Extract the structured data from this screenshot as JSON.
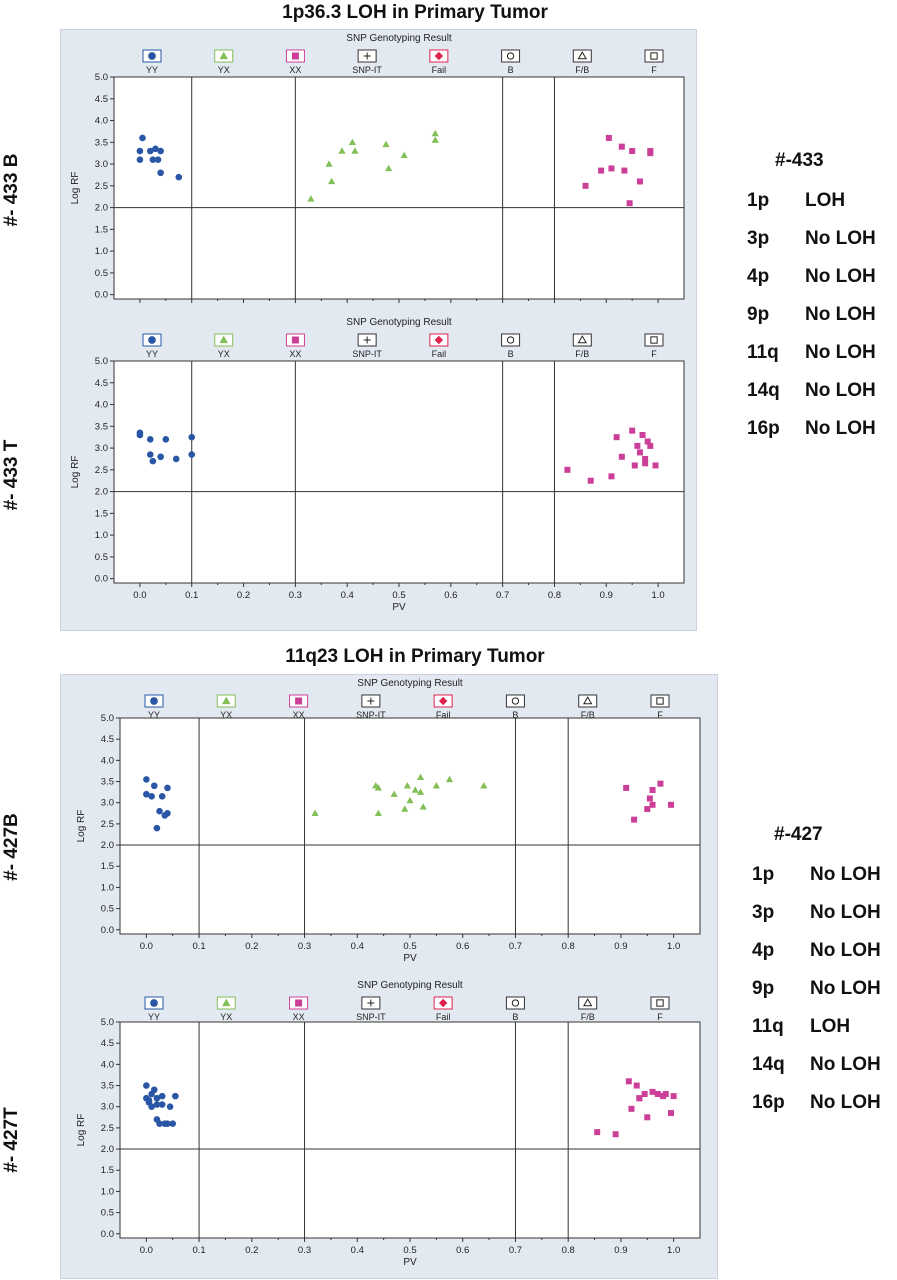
{
  "chart_data": [
    {
      "type": "scatter",
      "title": "SNP Genotyping Result",
      "xlabel": "",
      "ylabel": "Log RF",
      "xlim": [
        -0.05,
        1.05
      ],
      "ylim": [
        -0.1,
        5.0
      ],
      "xticks": [
        0.0,
        0.1,
        0.2,
        0.3,
        0.4,
        0.5,
        0.6,
        0.7,
        0.8,
        0.9,
        1.0
      ],
      "yticks": [
        0.0,
        0.5,
        1.0,
        1.5,
        2.0,
        2.5,
        3.0,
        3.5,
        4.0,
        4.5,
        5.0
      ],
      "show_xtick_labels": false,
      "series": [
        {
          "name": "YY",
          "x": [
            0.0,
            0.0,
            0.005,
            0.02,
            0.025,
            0.03,
            0.035,
            0.04,
            0.04,
            0.075
          ],
          "y": [
            3.3,
            3.1,
            3.6,
            3.3,
            3.1,
            3.35,
            3.1,
            3.3,
            2.8,
            2.7
          ]
        },
        {
          "name": "YX",
          "x": [
            0.33,
            0.365,
            0.37,
            0.39,
            0.41,
            0.415,
            0.475,
            0.48,
            0.51,
            0.57,
            0.57
          ],
          "y": [
            2.2,
            3.0,
            2.6,
            3.3,
            3.5,
            3.3,
            3.45,
            2.9,
            3.2,
            3.7,
            3.55
          ]
        },
        {
          "name": "XX",
          "x": [
            0.86,
            0.89,
            0.905,
            0.91,
            0.93,
            0.935,
            0.945,
            0.95,
            0.965,
            0.985,
            0.985
          ],
          "y": [
            2.5,
            2.85,
            3.6,
            2.9,
            3.4,
            2.85,
            2.1,
            3.3,
            2.6,
            3.3,
            3.25
          ]
        }
      ]
    },
    {
      "type": "scatter",
      "title": "SNP Genotyping Result",
      "xlabel": "PV",
      "ylabel": "Log RF",
      "xlim": [
        -0.05,
        1.05
      ],
      "ylim": [
        -0.1,
        5.0
      ],
      "xticks": [
        0.0,
        0.1,
        0.2,
        0.3,
        0.4,
        0.5,
        0.6,
        0.7,
        0.8,
        0.9,
        1.0
      ],
      "yticks": [
        0.0,
        0.5,
        1.0,
        1.5,
        2.0,
        2.5,
        3.0,
        3.5,
        4.0,
        4.5,
        5.0
      ],
      "show_xtick_labels": true,
      "series": [
        {
          "name": "YY",
          "x": [
            0.0,
            0.0,
            0.02,
            0.02,
            0.025,
            0.04,
            0.05,
            0.07,
            0.1,
            0.1
          ],
          "y": [
            3.35,
            3.3,
            3.2,
            2.85,
            2.7,
            2.8,
            3.2,
            2.75,
            3.25,
            2.85
          ]
        },
        {
          "name": "YX",
          "x": [],
          "y": []
        },
        {
          "name": "XX",
          "x": [
            0.825,
            0.87,
            0.91,
            0.92,
            0.93,
            0.95,
            0.955,
            0.96,
            0.965,
            0.97,
            0.975,
            0.975,
            0.98,
            0.985,
            0.995
          ],
          "y": [
            2.5,
            2.25,
            2.35,
            3.25,
            2.8,
            3.4,
            2.6,
            3.05,
            2.9,
            3.3,
            2.75,
            2.65,
            3.15,
            3.05,
            2.6
          ]
        }
      ]
    },
    {
      "type": "scatter",
      "title": "SNP Genotyping Result",
      "xlabel": "PV",
      "ylabel": "Log RF",
      "xlim": [
        -0.05,
        1.05
      ],
      "ylim": [
        -0.1,
        5.0
      ],
      "xticks": [
        0.0,
        0.1,
        0.2,
        0.3,
        0.4,
        0.5,
        0.6,
        0.7,
        0.8,
        0.9,
        1.0
      ],
      "yticks": [
        0.0,
        0.5,
        1.0,
        1.5,
        2.0,
        2.5,
        3.0,
        3.5,
        4.0,
        4.5,
        5.0
      ],
      "show_xtick_labels": true,
      "series": [
        {
          "name": "YY",
          "x": [
            0.0,
            0.0,
            0.01,
            0.015,
            0.02,
            0.025,
            0.03,
            0.035,
            0.04,
            0.04
          ],
          "y": [
            3.55,
            3.2,
            3.15,
            3.4,
            2.4,
            2.8,
            3.15,
            2.7,
            3.35,
            2.75
          ]
        },
        {
          "name": "YX",
          "x": [
            0.32,
            0.435,
            0.44,
            0.44,
            0.47,
            0.49,
            0.495,
            0.5,
            0.51,
            0.52,
            0.52,
            0.525,
            0.55,
            0.575,
            0.64
          ],
          "y": [
            2.75,
            3.4,
            2.75,
            3.35,
            3.2,
            2.85,
            3.4,
            3.05,
            3.3,
            3.6,
            3.25,
            2.9,
            3.4,
            3.55,
            3.4
          ]
        },
        {
          "name": "XX",
          "x": [
            0.91,
            0.925,
            0.95,
            0.955,
            0.96,
            0.96,
            0.975,
            0.995
          ],
          "y": [
            3.35,
            2.6,
            2.85,
            3.1,
            3.3,
            2.95,
            3.45,
            2.95
          ]
        }
      ]
    },
    {
      "type": "scatter",
      "title": "SNP Genotyping Result",
      "xlabel": "PV",
      "ylabel": "Log RF",
      "xlim": [
        -0.05,
        1.05
      ],
      "ylim": [
        -0.1,
        5.0
      ],
      "xticks": [
        0.0,
        0.1,
        0.2,
        0.3,
        0.4,
        0.5,
        0.6,
        0.7,
        0.8,
        0.9,
        1.0
      ],
      "yticks": [
        0.0,
        0.5,
        1.0,
        1.5,
        2.0,
        2.5,
        3.0,
        3.5,
        4.0,
        4.5,
        5.0
      ],
      "show_xtick_labels": true,
      "series": [
        {
          "name": "YY",
          "x": [
            0.0,
            0.0,
            0.005,
            0.01,
            0.015,
            0.02,
            0.02,
            0.025,
            0.03,
            0.035,
            0.04,
            0.045,
            0.05,
            0.055,
            0.01,
            0.005,
            0.03,
            0.02
          ],
          "y": [
            3.5,
            3.2,
            3.1,
            3.0,
            3.4,
            3.05,
            2.7,
            2.6,
            3.25,
            2.6,
            2.6,
            3.0,
            2.6,
            3.25,
            3.3,
            3.15,
            3.05,
            3.2
          ]
        },
        {
          "name": "YX",
          "x": [],
          "y": []
        },
        {
          "name": "XX",
          "x": [
            0.855,
            0.89,
            0.915,
            0.92,
            0.93,
            0.935,
            0.945,
            0.95,
            0.96,
            0.97,
            0.98,
            0.985,
            0.995,
            1.0,
            0.935
          ],
          "y": [
            2.4,
            2.35,
            3.6,
            2.95,
            3.5,
            3.2,
            3.3,
            2.75,
            3.35,
            3.3,
            3.25,
            3.3,
            2.85,
            3.25,
            3.2
          ]
        }
      ]
    }
  ],
  "legend": [
    {
      "name": "YY",
      "symbol": "circle",
      "color": "#2a56a6",
      "box": "#2a56a6"
    },
    {
      "name": "YX",
      "symbol": "triangle",
      "color": "#82bf57",
      "box": "#82bf57"
    },
    {
      "name": "XX",
      "symbol": "square",
      "color": "#cc3f98",
      "box": "#cc3f98"
    },
    {
      "name": "SNP-IT",
      "symbol": "plus",
      "color": "#222222",
      "box": "#333333"
    },
    {
      "name": "Fail",
      "symbol": "diamond",
      "color": "#e0224e",
      "box": "#e0224e"
    },
    {
      "name": "B",
      "symbol": "open-circle",
      "color": "#222222",
      "box": "#333333"
    },
    {
      "name": "F/B",
      "symbol": "open-triangle",
      "color": "#222222",
      "box": "#333333"
    },
    {
      "name": "F",
      "symbol": "open-square",
      "color": "#222222",
      "box": "#333333"
    }
  ],
  "colors": {
    "YY": "#2a56a6",
    "YX": "#82bf57",
    "XX": "#cc3f98"
  },
  "sections": [
    {
      "title": "1p36.3 LOH in Primary Tumor"
    },
    {
      "title": "11q23 LOH in Primary Tumor"
    }
  ],
  "rows": [
    {
      "label": "#- 433 B"
    },
    {
      "label": "#- 433 T"
    },
    {
      "label": "#- 427B"
    },
    {
      "label": "#- 427T"
    }
  ],
  "summaries": [
    {
      "title": "#-433",
      "items": [
        {
          "arm": "1p",
          "status": "LOH"
        },
        {
          "arm": "3p",
          "status": "No LOH"
        },
        {
          "arm": "4p",
          "status": "No LOH"
        },
        {
          "arm": "9p",
          "status": "No LOH"
        },
        {
          "arm": "11q",
          "status": "No LOH"
        },
        {
          "arm": "14q",
          "status": "No LOH"
        },
        {
          "arm": "16p",
          "status": "No LOH"
        }
      ]
    },
    {
      "title": "#-427",
      "items": [
        {
          "arm": "1p",
          "status": "No LOH"
        },
        {
          "arm": "3p",
          "status": "No LOH"
        },
        {
          "arm": "4p",
          "status": "No LOH"
        },
        {
          "arm": "9p",
          "status": "No LOH"
        },
        {
          "arm": "11q",
          "status": "LOH"
        },
        {
          "arm": "14q",
          "status": "No LOH"
        },
        {
          "arm": "16p",
          "status": "No LOH"
        }
      ]
    }
  ]
}
